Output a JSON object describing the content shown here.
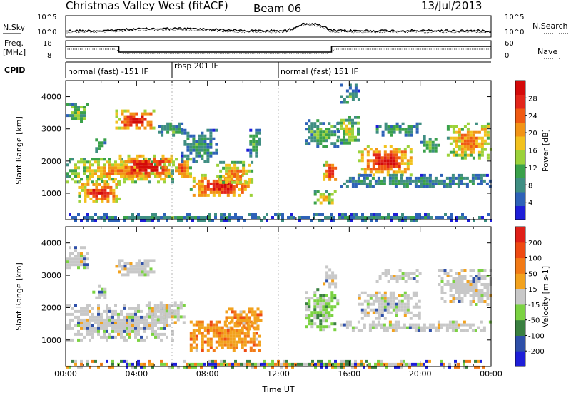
{
  "header": {
    "title": "Christmas Valley West (fitACF)",
    "beam": "Beam 06",
    "date": "13/Jul/2013"
  },
  "noise_panel": {
    "left_label": "N.Sky",
    "right_label": "N.Search",
    "left_ticks": [
      "10^5",
      "10^0"
    ],
    "right_ticks": [
      "10^5",
      "10^0"
    ]
  },
  "freq_panel": {
    "left_label_1": "Freq.",
    "left_label_2": "[MHz]",
    "right_label": "Nave",
    "left_ticks": [
      "18",
      "8"
    ],
    "right_ticks": [
      "60",
      "0"
    ]
  },
  "cpid": {
    "label": "CPID",
    "segments": [
      {
        "label": "normal (fast) -151 IF",
        "start_h": 0,
        "end_h": 6
      },
      {
        "label": "rbsp 201 IF",
        "start_h": 6,
        "end_h": 12
      },
      {
        "label": "normal (fast) 151 IF",
        "start_h": 12,
        "end_h": 24
      }
    ]
  },
  "chart_data": [
    {
      "type": "heatmap",
      "name": "power",
      "xlabel": "Time UT",
      "ylabel": "Slant Range [km]",
      "xlim": [
        0,
        24
      ],
      "ylim": [
        180,
        4500
      ],
      "yticks": [
        "1000",
        "2000",
        "3000",
        "4000"
      ],
      "colorbar_label": "Power [dB]",
      "colorbar_ticks": [
        "28",
        "24",
        "20",
        "16",
        "12",
        "8",
        "4"
      ],
      "colorbar_colors": [
        "#1e1ed8",
        "#2e62b8",
        "#3f8e82",
        "#3aa14a",
        "#9cd23a",
        "#f2c21e",
        "#f29416",
        "#f05a12",
        "#e3261a",
        "#d40a0a"
      ],
      "regions": [
        {
          "t0": 0.0,
          "t1": 1.2,
          "r0": 3200,
          "r1": 3900,
          "level": 0.35
        },
        {
          "t0": 0.0,
          "t1": 6.0,
          "r0": 1350,
          "r1": 2100,
          "level": 0.6
        },
        {
          "t0": 0.7,
          "t1": 3.0,
          "r0": 700,
          "r1": 1400,
          "level": 0.8
        },
        {
          "t0": 3.0,
          "t1": 6.0,
          "r0": 1500,
          "r1": 2200,
          "level": 0.95
        },
        {
          "t0": 1.5,
          "t1": 2.2,
          "r0": 2300,
          "r1": 2700,
          "level": 0.35
        },
        {
          "t0": 2.8,
          "t1": 5.0,
          "r0": 3000,
          "r1": 3600,
          "level": 0.9
        },
        {
          "t0": 5.2,
          "t1": 6.6,
          "r0": 2800,
          "r1": 3200,
          "level": 0.3
        },
        {
          "t0": 6.0,
          "t1": 7.0,
          "r0": 1500,
          "r1": 2100,
          "level": 0.75
        },
        {
          "t0": 7.0,
          "t1": 10.5,
          "r0": 900,
          "r1": 1600,
          "level": 0.85
        },
        {
          "t0": 8.5,
          "t1": 10.5,
          "r0": 1300,
          "r1": 2000,
          "level": 0.6
        },
        {
          "t0": 6.5,
          "t1": 8.5,
          "r0": 2000,
          "r1": 3000,
          "level": 0.25
        },
        {
          "t0": 10.2,
          "t1": 11.0,
          "r0": 2200,
          "r1": 3000,
          "level": 0.25
        },
        {
          "t0": 0.0,
          "t1": 12.0,
          "r0": 200,
          "r1": 380,
          "level": 0.22
        },
        {
          "t0": 13.5,
          "t1": 15.3,
          "r0": 2500,
          "r1": 3300,
          "level": 0.35
        },
        {
          "t0": 14.5,
          "t1": 15.3,
          "r0": 1400,
          "r1": 2000,
          "level": 0.85
        },
        {
          "t0": 14.0,
          "t1": 15.3,
          "r0": 700,
          "r1": 1100,
          "level": 0.55
        },
        {
          "t0": 15.3,
          "t1": 16.5,
          "r0": 2600,
          "r1": 3400,
          "level": 0.45
        },
        {
          "t0": 16.5,
          "t1": 19.5,
          "r0": 1600,
          "r1": 2500,
          "level": 0.85
        },
        {
          "t0": 17.5,
          "t1": 20.0,
          "r0": 2800,
          "r1": 3200,
          "level": 0.3
        },
        {
          "t0": 15.5,
          "t1": 24.0,
          "r0": 1200,
          "r1": 1600,
          "level": 0.25
        },
        {
          "t0": 20.0,
          "t1": 21.0,
          "r0": 2300,
          "r1": 2800,
          "level": 0.35
        },
        {
          "t0": 21.5,
          "t1": 24.0,
          "r0": 2100,
          "r1": 3200,
          "level": 0.65
        },
        {
          "t0": 15.5,
          "t1": 16.5,
          "r0": 3800,
          "r1": 4400,
          "level": 0.25
        },
        {
          "t0": 12.0,
          "t1": 24.0,
          "r0": 200,
          "r1": 380,
          "level": 0.2
        }
      ]
    },
    {
      "type": "heatmap",
      "name": "velocity",
      "xlabel": "Time UT",
      "ylabel": "Slant Range [km]",
      "xlim": [
        0,
        24
      ],
      "ylim": [
        180,
        4500
      ],
      "yticks": [
        "1000",
        "2000",
        "3000",
        "4000"
      ],
      "xticks": [
        "00:00",
        "04:00",
        "08:00",
        "12:00",
        "16:00",
        "20:00",
        "00:00"
      ],
      "colorbar_label": "Velocity [m s-1]",
      "colorbar_ticks": [
        "200",
        "100",
        "50",
        "15",
        "-15",
        "-50",
        "-100",
        "-200"
      ],
      "colorbar_colors": [
        "#1e1ed8",
        "#2e4fa8",
        "#3a8040",
        "#7bd242",
        "#c8c8c8",
        "#f2a21e",
        "#f27a16",
        "#ee4a12",
        "#e02018"
      ],
      "regions": [
        {
          "t0": 0.0,
          "t1": 1.2,
          "r0": 3200,
          "r1": 3900,
          "vel": "gray"
        },
        {
          "t0": 0.0,
          "t1": 6.0,
          "r0": 1000,
          "r1": 2100,
          "vel": "gray"
        },
        {
          "t0": 2.8,
          "t1": 5.0,
          "r0": 3000,
          "r1": 3500,
          "vel": "gray"
        },
        {
          "t0": 1.5,
          "t1": 2.2,
          "r0": 2300,
          "r1": 2700,
          "vel": "gray"
        },
        {
          "t0": 4.5,
          "t1": 6.6,
          "r0": 1500,
          "r1": 2200,
          "vel": "gray"
        },
        {
          "t0": 7.0,
          "t1": 11.0,
          "r0": 700,
          "r1": 1600,
          "vel": "orange"
        },
        {
          "t0": 9.0,
          "t1": 11.0,
          "r0": 1300,
          "r1": 2000,
          "vel": "orange"
        },
        {
          "t0": 13.5,
          "t1": 15.3,
          "r0": 1300,
          "r1": 2600,
          "vel": "green"
        },
        {
          "t0": 14.5,
          "t1": 15.3,
          "r0": 2600,
          "r1": 3300,
          "vel": "gray"
        },
        {
          "t0": 16.5,
          "t1": 20.0,
          "r0": 1700,
          "r1": 2500,
          "vel": "gray"
        },
        {
          "t0": 15.5,
          "t1": 24.0,
          "r0": 1300,
          "r1": 1600,
          "vel": "gray"
        },
        {
          "t0": 21.0,
          "t1": 24.0,
          "r0": 2100,
          "r1": 3200,
          "vel": "gray"
        },
        {
          "t0": 17.5,
          "t1": 20.0,
          "r0": 2800,
          "r1": 3200,
          "vel": "gray"
        },
        {
          "t0": 0.0,
          "t1": 24.0,
          "r0": 200,
          "r1": 380,
          "vel": "mixed"
        }
      ]
    }
  ]
}
